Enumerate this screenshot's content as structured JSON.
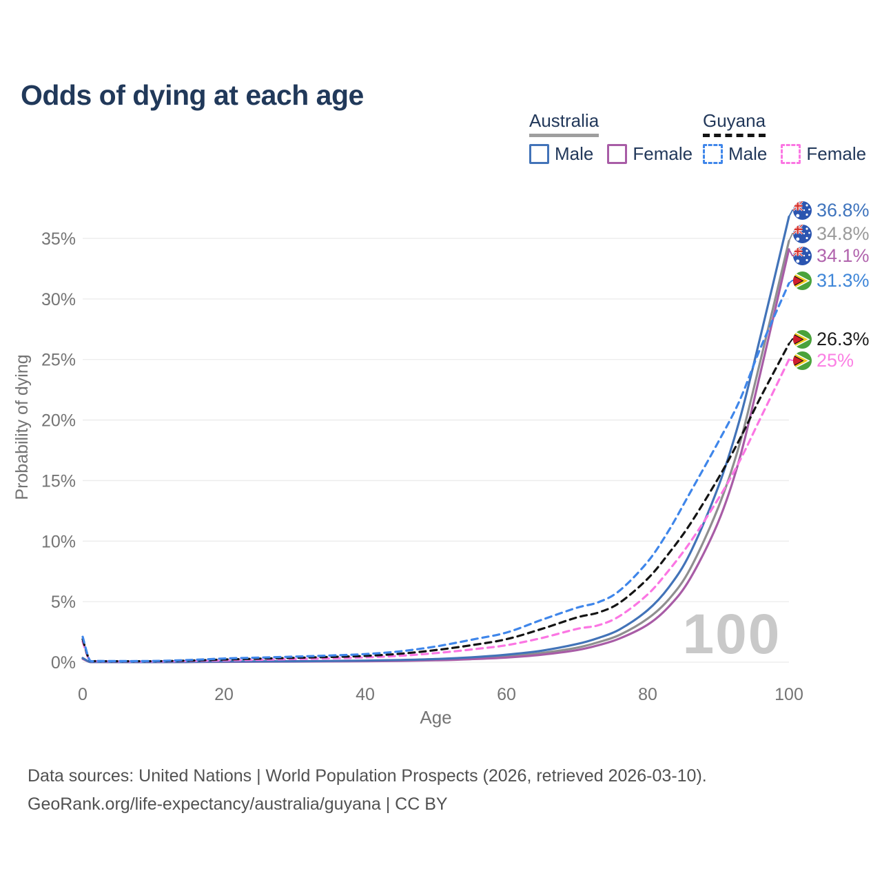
{
  "title": "Odds of dying at each age",
  "watermark_age": "100",
  "legend": {
    "australia": {
      "label": "Australia",
      "male": "Male",
      "female": "Female"
    },
    "guyana": {
      "label": "Guyana",
      "male": "Male",
      "female": "Female"
    }
  },
  "footer": {
    "line1": "Data sources: United Nations | World Population Prospects (2026, retrieved 2026-03-10).",
    "line2": "GeoRank.org/life-expectancy/australia/guyana | CC BY"
  },
  "colors": {
    "title_navy": "#21395a",
    "legend_text": "#22385a",
    "australia_underline": "#9e9e9e",
    "guyana_underline": "#141414",
    "grid": "#ebebeb",
    "axis_text": "#747474",
    "watermark": "#c9c9c9",
    "australia_male": "#4273b8",
    "australia_all": "#8f8f8f",
    "australia_female": "#a85ca6",
    "guyana_male": "#3f86ea",
    "guyana_all": "#141414",
    "guyana_female": "#fb76e3"
  },
  "chart_data": {
    "type": "line",
    "title": "Odds of dying at each age",
    "xlabel": "Age",
    "ylabel": "Probability of dying",
    "units": "percent probability of dying at each age",
    "xlim": [
      0,
      100
    ],
    "ylim": [
      0,
      37
    ],
    "grid": true,
    "legend_position": "top-right",
    "x_ticks": [
      0,
      20,
      40,
      60,
      80,
      100
    ],
    "y_ticks": [
      "0%",
      "5%",
      "10%",
      "15%",
      "20%",
      "25%",
      "30%",
      "35%"
    ],
    "ages": [
      0,
      1,
      2,
      5,
      10,
      15,
      20,
      25,
      30,
      35,
      40,
      45,
      50,
      55,
      60,
      65,
      70,
      73,
      76,
      80,
      83,
      86,
      90,
      93,
      96,
      100
    ],
    "series": [
      {
        "name": "Australia Male",
        "country": "Australia",
        "sex": "Male",
        "line_style": "solid",
        "color": "#4273b8",
        "label": "36.8%",
        "label_color": "#3f74bd",
        "values": [
          0.35,
          0.03,
          0.02,
          0.01,
          0.01,
          0.03,
          0.06,
          0.07,
          0.08,
          0.1,
          0.13,
          0.18,
          0.26,
          0.4,
          0.62,
          0.95,
          1.5,
          2.0,
          2.7,
          4.3,
          6.2,
          9.0,
          14.5,
          20.0,
          27.0,
          36.8
        ]
      },
      {
        "name": "Australia (both sexes)",
        "country": "Australia",
        "sex": "All",
        "line_style": "solid",
        "color": "#8f8f8f",
        "label": "34.8%",
        "label_color": "#9a9a9a",
        "values": [
          0.3,
          0.025,
          0.018,
          0.009,
          0.008,
          0.02,
          0.045,
          0.055,
          0.065,
          0.08,
          0.1,
          0.14,
          0.2,
          0.31,
          0.48,
          0.76,
          1.2,
          1.65,
          2.25,
          3.6,
          5.2,
          7.7,
          12.8,
          18.0,
          25.0,
          34.8
        ]
      },
      {
        "name": "Australia Female",
        "country": "Australia",
        "sex": "Female",
        "line_style": "solid",
        "color": "#a85ca6",
        "label": "34.1%",
        "label_color": "#b164ad",
        "values": [
          0.28,
          0.02,
          0.015,
          0.008,
          0.007,
          0.015,
          0.03,
          0.04,
          0.05,
          0.06,
          0.08,
          0.11,
          0.16,
          0.25,
          0.38,
          0.62,
          1.0,
          1.4,
          1.95,
          3.1,
          4.6,
          6.9,
          11.6,
          16.8,
          24.0,
          34.1
        ]
      },
      {
        "name": "Guyana Male",
        "country": "Guyana",
        "sex": "Male",
        "line_style": "dashed",
        "color": "#3f86ea",
        "label": "31.3%",
        "label_color": "#3f86d8",
        "values": [
          2.1,
          0.15,
          0.1,
          0.09,
          0.1,
          0.18,
          0.3,
          0.38,
          0.46,
          0.55,
          0.67,
          0.9,
          1.3,
          1.85,
          2.45,
          3.5,
          4.5,
          4.95,
          5.9,
          8.3,
          10.9,
          14.0,
          18.2,
          21.6,
          26.0,
          31.3
        ]
      },
      {
        "name": "Guyana (both sexes)",
        "country": "Guyana",
        "sex": "All",
        "line_style": "dashed",
        "color": "#141414",
        "label": "26.3%",
        "label_color": "#1c1c1c",
        "values": [
          1.9,
          0.13,
          0.09,
          0.08,
          0.08,
          0.13,
          0.22,
          0.29,
          0.36,
          0.43,
          0.52,
          0.7,
          1.0,
          1.4,
          1.9,
          2.75,
          3.7,
          4.1,
          4.9,
          6.9,
          9.0,
          11.4,
          15.2,
          18.4,
          21.9,
          26.3
        ]
      },
      {
        "name": "Guyana Female",
        "country": "Guyana",
        "sex": "Female",
        "line_style": "dashed",
        "color": "#fb76e3",
        "label": "25%",
        "label_color": "#fb80e4",
        "values": [
          1.7,
          0.11,
          0.08,
          0.06,
          0.06,
          0.1,
          0.15,
          0.2,
          0.26,
          0.32,
          0.4,
          0.53,
          0.75,
          1.05,
          1.4,
          2.0,
          2.75,
          3.05,
          3.8,
          5.6,
          7.6,
          9.9,
          13.5,
          16.6,
          20.2,
          25.0
        ]
      }
    ]
  }
}
